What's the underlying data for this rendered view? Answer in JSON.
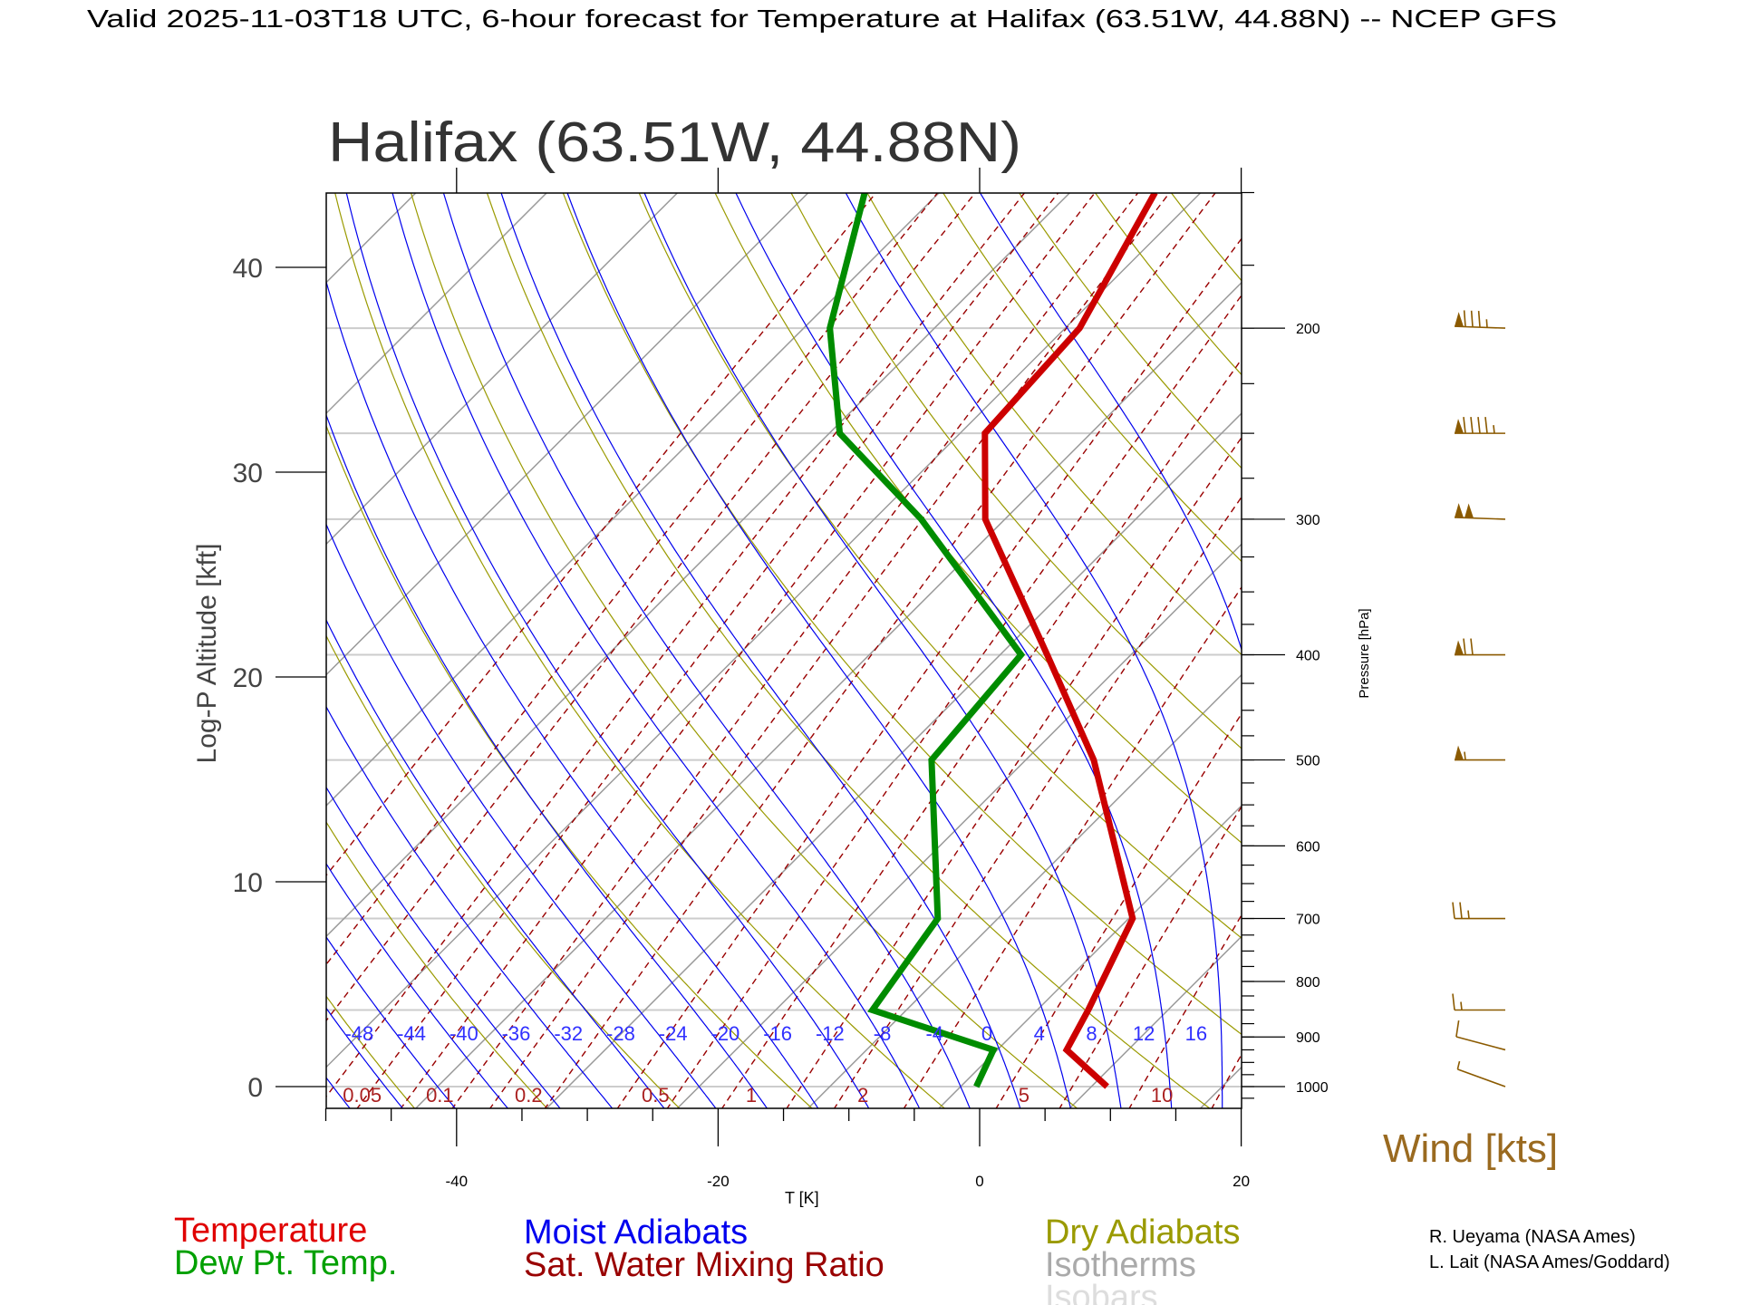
{
  "header": {
    "title": "Valid 2025-11-03T18 UTC, 6-hour forecast for Temperature at Halifax (63.51W, 44.88N) -- NCEP GFS",
    "station_title": "Halifax (63.51W, 44.88N)"
  },
  "colors": {
    "temperature": "#cc0000",
    "dewpoint": "#008c00",
    "moist": "#0000ee",
    "dry": "#9a9a00",
    "mixing": "#990000",
    "isotherm": "#9a9a9a",
    "isobar": "#cccccc",
    "wind": "#8b5a00"
  },
  "chart_data": {
    "type": "line",
    "subtype": "skew-T log-P diagram",
    "title": "Halifax (63.51W, 44.88N)",
    "xlabel": "T [K]",
    "ylabel": "Log-P Altitude [kft]",
    "y2label": "Pressure [hPa]",
    "xlim": [
      -50,
      20
    ],
    "pressure_range_hPa": [
      1047,
      150
    ],
    "x_ticks": [
      "-40",
      "-20",
      "0",
      "20"
    ],
    "x_tick_values": [
      -40,
      -20,
      0,
      20
    ],
    "y_ticks": [
      "0",
      "10",
      "20",
      "30",
      "40"
    ],
    "y_tick_values": [
      0,
      10,
      20,
      30,
      40
    ],
    "pressure_ticks": [
      "1000",
      "900",
      "800",
      "700",
      "600",
      "500",
      "400",
      "300",
      "200"
    ],
    "pressure_tick_values": [
      1000,
      900,
      800,
      700,
      600,
      500,
      400,
      300,
      200
    ],
    "isobars_hPa": [
      1000,
      850,
      700,
      500,
      400,
      300,
      250,
      200
    ],
    "series": [
      {
        "name": "Temperature",
        "pressure_hPa": [
          1000,
          925,
          850,
          700,
          500,
          400,
          300,
          250,
          200,
          150
        ],
        "temperature_C": [
          11.2,
          5.3,
          3.9,
          0.3,
          -14.8,
          -26.4,
          -41.5,
          -48.1,
          -48.9,
          -53.5
        ]
      },
      {
        "name": "Dew Pt. Temp.",
        "pressure_hPa": [
          1000,
          925,
          850,
          700,
          500,
          400,
          300,
          250,
          200,
          150
        ],
        "temperature_C": [
          1.2,
          -0.3,
          -12.6,
          -14.6,
          -27.2,
          -28.4,
          -46.4,
          -59.2,
          -68.0,
          -75.7
        ]
      }
    ],
    "moist_adiabat_labels": [
      "-48",
      "-44",
      "-40",
      "-36",
      "-32",
      "-28",
      "-24",
      "-20",
      "-16",
      "-12",
      "-8",
      "-4",
      "0",
      "4",
      "8",
      "12",
      "16"
    ],
    "moist_adiabat_values_C": [
      -48,
      -44,
      -40,
      -36,
      -32,
      -28,
      -24,
      -20,
      -16,
      -12,
      -8,
      -4,
      0,
      4,
      8,
      12,
      16,
      20,
      24
    ],
    "mixing_ratio_labels": [
      "0.05",
      "0.1",
      "0.2",
      "0.5",
      "1",
      "2",
      "5",
      "10"
    ],
    "mixing_ratio_label_values": [
      0.05,
      0.1,
      0.2,
      0.5,
      1,
      2,
      5,
      10
    ],
    "mixing_ratio_values_gkg": [
      0.01,
      0.02,
      0.03,
      0.05,
      0.07,
      0.1,
      0.15,
      0.2,
      0.3,
      0.5,
      0.7,
      1,
      1.5,
      2,
      3,
      5,
      7,
      10,
      15,
      20
    ],
    "dry_adiabat_theta_K": [
      200,
      210,
      220,
      230,
      240,
      250,
      260,
      270,
      280,
      290,
      300,
      310,
      320,
      330,
      340,
      350,
      360,
      370,
      380,
      390,
      400,
      410,
      420,
      430,
      440
    ],
    "isotherm_values_C": [
      -150,
      -140,
      -130,
      -120,
      -110,
      -100,
      -90,
      -80,
      -70,
      -60,
      -50,
      -40,
      -30,
      -20,
      -10,
      0,
      10,
      20,
      30
    ],
    "wind": {
      "label": "Wind [kts]",
      "levels_hPa": [
        1000,
        925,
        850,
        700,
        500,
        400,
        300,
        250,
        200
      ],
      "speed_kts": [
        5,
        10,
        15,
        25,
        55,
        70,
        100,
        95,
        85
      ],
      "direction_deg": [
        250,
        255,
        270,
        270,
        270,
        270,
        268,
        270,
        268
      ]
    }
  },
  "legend": {
    "temperature": "Temperature",
    "dewpoint": "Dew Pt. Temp.",
    "moist": "Moist Adiabats",
    "mixing": "Sat. Water Mixing Ratio",
    "dry": "Dry Adiabats",
    "isotherms": "Isotherms",
    "isobars": "Isobars"
  },
  "credits": [
    "R. Ueyama (NASA Ames)",
    "L. Lait (NASA Ames/Goddard)"
  ]
}
